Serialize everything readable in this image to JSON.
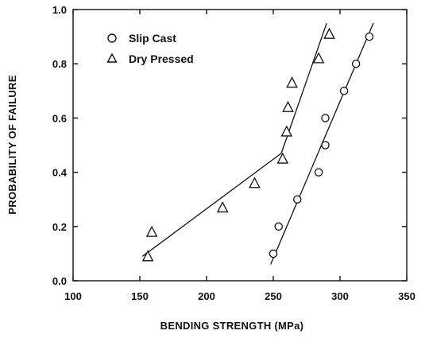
{
  "chart_data": {
    "type": "scatter",
    "title": "",
    "xlabel": "BENDING STRENGTH (MPa)",
    "ylabel": "PROBABILITY OF FAILURE",
    "xlim": [
      100,
      350
    ],
    "ylim": [
      0.0,
      1.0
    ],
    "x_ticks": [
      100,
      150,
      200,
      250,
      300,
      350
    ],
    "y_ticks": [
      0.0,
      0.2,
      0.4,
      0.6,
      0.8,
      1.0
    ],
    "x_tick_labels": [
      "100",
      "150",
      "200",
      "250",
      "300",
      "350"
    ],
    "y_tick_labels": [
      "0.0",
      "0.2",
      "0.4",
      "0.6",
      "0.8",
      "1.0"
    ],
    "grid": false,
    "legend_position": "top-left",
    "series": [
      {
        "name": "Slip Cast",
        "marker": "circle",
        "points": [
          {
            "x": 250,
            "y": 0.1
          },
          {
            "x": 254,
            "y": 0.2
          },
          {
            "x": 268,
            "y": 0.3
          },
          {
            "x": 284,
            "y": 0.4
          },
          {
            "x": 289,
            "y": 0.5
          },
          {
            "x": 289,
            "y": 0.6
          },
          {
            "x": 303,
            "y": 0.7
          },
          {
            "x": 312,
            "y": 0.8
          },
          {
            "x": 322,
            "y": 0.9
          }
        ],
        "fit_lines": [
          {
            "x": [
              248,
              325
            ],
            "y": [
              0.06,
              0.95
            ]
          }
        ]
      },
      {
        "name": "Dry Pressed",
        "marker": "triangle",
        "points": [
          {
            "x": 156,
            "y": 0.09
          },
          {
            "x": 159,
            "y": 0.18
          },
          {
            "x": 212,
            "y": 0.27
          },
          {
            "x": 236,
            "y": 0.36
          },
          {
            "x": 257,
            "y": 0.45
          },
          {
            "x": 260,
            "y": 0.55
          },
          {
            "x": 261,
            "y": 0.64
          },
          {
            "x": 264,
            "y": 0.73
          },
          {
            "x": 284,
            "y": 0.82
          },
          {
            "x": 292,
            "y": 0.91
          }
        ],
        "fit_lines": [
          {
            "x": [
              152,
              256
            ],
            "y": [
              0.09,
              0.47
            ]
          },
          {
            "x": [
              256,
              290
            ],
            "y": [
              0.47,
              0.95
            ]
          }
        ]
      }
    ]
  }
}
